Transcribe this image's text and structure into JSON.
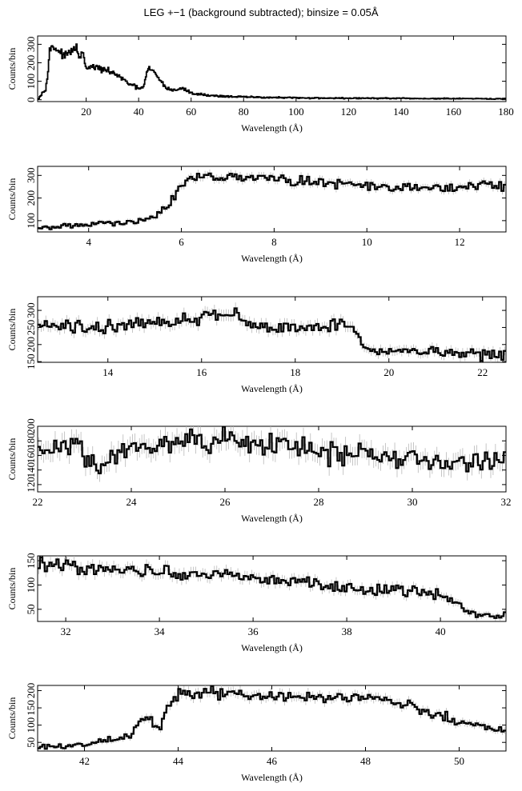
{
  "title": "LEG +−1 (background subtracted); binsize = 0.05Å",
  "colors": {
    "line": "#000000",
    "errorbar": "#b8b8b8",
    "frame": "#000000",
    "background": "#ffffff"
  },
  "chart_data": [
    {
      "type": "line",
      "title": "LEG +−1 (background subtracted); binsize = 0.05Å",
      "xlabel": "Wavelength (Å)",
      "ylabel": "Counts/bin",
      "xlim": [
        1.5,
        180
      ],
      "ylim": [
        -10,
        345
      ],
      "xticks": [
        20,
        40,
        60,
        80,
        100,
        120,
        140,
        160,
        180
      ],
      "yticks": [
        0,
        100,
        200,
        300
      ],
      "grid": false,
      "series": [
        {
          "x": [
            1.7,
            3,
            4.5,
            5.5,
            6,
            7,
            8,
            9,
            10,
            11,
            12,
            13,
            14,
            15,
            16,
            16.5,
            17,
            18,
            19,
            20,
            22,
            25,
            28,
            30,
            33,
            36,
            40,
            42,
            43,
            44,
            45,
            47,
            50,
            53,
            56,
            58,
            60,
            63,
            66,
            70,
            80,
            90,
            100,
            110,
            120,
            130,
            140,
            150,
            160,
            170,
            180
          ],
          "y": [
            5,
            30,
            60,
            150,
            260,
            290,
            280,
            270,
            260,
            245,
            235,
            250,
            260,
            270,
            265,
            290,
            240,
            235,
            250,
            160,
            180,
            170,
            155,
            150,
            120,
            90,
            60,
            70,
            140,
            170,
            160,
            130,
            70,
            50,
            60,
            55,
            35,
            30,
            25,
            20,
            15,
            12,
            10,
            9,
            8,
            8,
            7,
            6,
            6,
            5,
            5
          ]
        }
      ]
    },
    {
      "type": "line",
      "xlabel": "Wavelength (Å)",
      "ylabel": "Counts/bin",
      "xlim": [
        2.9,
        13
      ],
      "ylim": [
        50,
        340
      ],
      "xticks": [
        4,
        6,
        8,
        10,
        12
      ],
      "yticks": [
        100,
        200,
        300
      ],
      "grid": false,
      "series": [
        {
          "x": [
            2.9,
            3.5,
            4,
            4.5,
            5,
            5.3,
            5.5,
            5.7,
            5.85,
            6,
            6.2,
            6.5,
            7,
            7.5,
            8,
            8.5,
            9,
            9.5,
            10,
            10.5,
            11,
            11.5,
            12,
            12.5,
            13
          ],
          "y": [
            65,
            75,
            85,
            90,
            95,
            105,
            130,
            160,
            210,
            260,
            290,
            300,
            295,
            290,
            285,
            275,
            270,
            265,
            255,
            245,
            240,
            245,
            250,
            265,
            250
          ]
        }
      ]
    },
    {
      "type": "line",
      "xlabel": "Wavelength (Å)",
      "ylabel": "Counts/bin",
      "xlim": [
        12.5,
        22.5
      ],
      "ylim": [
        148,
        340
      ],
      "xticks": [
        14,
        16,
        18,
        20,
        22
      ],
      "yticks": [
        150,
        200,
        250,
        300
      ],
      "grid": false,
      "series": [
        {
          "x": [
            12.5,
            13,
            13.5,
            14,
            14.5,
            15,
            15.5,
            16,
            16.5,
            16.8,
            17,
            17.5,
            18,
            18.5,
            19,
            19.3,
            19.5,
            20,
            20.5,
            21,
            21.5,
            22,
            22.5
          ],
          "y": [
            255,
            252,
            250,
            255,
            258,
            265,
            272,
            278,
            295,
            290,
            255,
            252,
            250,
            258,
            262,
            240,
            190,
            178,
            180,
            177,
            175,
            172,
            165
          ]
        }
      ]
    },
    {
      "type": "line",
      "xlabel": "Wavelength (Å)",
      "ylabel": "Counts/bin",
      "xlim": [
        22,
        32
      ],
      "ylim": [
        110,
        200
      ],
      "xticks": [
        22,
        24,
        26,
        28,
        30,
        32
      ],
      "yticks": [
        120,
        140,
        160,
        180,
        200
      ],
      "grid": false,
      "series": [
        {
          "x": [
            22,
            22.5,
            23,
            23.3,
            23.5,
            24,
            24.5,
            25,
            25.5,
            26,
            26.5,
            27,
            27.5,
            28,
            28.5,
            29,
            29.5,
            30,
            30.5,
            31,
            31.5,
            32
          ],
          "y": [
            168,
            172,
            168,
            135,
            160,
            175,
            178,
            180,
            182,
            185,
            178,
            172,
            170,
            165,
            165,
            162,
            158,
            155,
            145,
            150,
            152,
            155
          ]
        }
      ]
    },
    {
      "type": "line",
      "xlabel": "Wavelength (Å)",
      "ylabel": "Counts/bin",
      "xlim": [
        31.4,
        41.4
      ],
      "ylim": [
        25,
        160
      ],
      "xticks": [
        32,
        34,
        36,
        38,
        40
      ],
      "yticks": [
        50,
        100,
        150
      ],
      "grid": false,
      "series": [
        {
          "x": [
            31.4,
            32,
            32.5,
            33,
            33.5,
            34,
            34.5,
            35,
            35.5,
            36,
            36.5,
            37,
            37.5,
            38,
            38.5,
            39,
            39.5,
            40,
            40.3,
            40.6,
            41,
            41.4
          ],
          "y": [
            145,
            140,
            135,
            135,
            130,
            125,
            123,
            122,
            120,
            115,
            110,
            108,
            100,
            95,
            90,
            90,
            85,
            78,
            65,
            45,
            35,
            35
          ]
        }
      ]
    },
    {
      "type": "line",
      "xlabel": "Wavelength (Å)",
      "ylabel": "Counts/bin",
      "xlim": [
        41,
        51
      ],
      "ylim": [
        25,
        215
      ],
      "xticks": [
        42,
        44,
        46,
        48,
        50
      ],
      "yticks": [
        50,
        100,
        150,
        200
      ],
      "grid": false,
      "series": [
        {
          "x": [
            41,
            41.5,
            42,
            42.5,
            43,
            43.2,
            43.4,
            43.6,
            43.75,
            44,
            44.5,
            45,
            45.5,
            46,
            46.5,
            47,
            47.5,
            48,
            48.5,
            49,
            49.5,
            50,
            50.5,
            51
          ],
          "y": [
            38,
            40,
            45,
            55,
            70,
            110,
            120,
            80,
            150,
            185,
            195,
            190,
            188,
            185,
            183,
            180,
            180,
            178,
            175,
            155,
            130,
            110,
            95,
            85
          ]
        }
      ]
    }
  ]
}
